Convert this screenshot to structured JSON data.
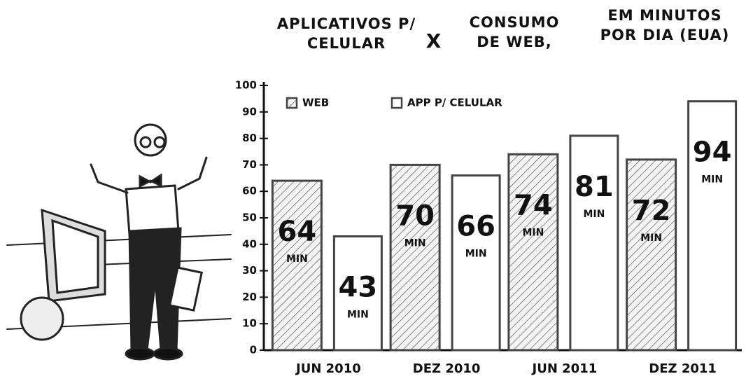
{
  "chart_data": {
    "type": "bar",
    "title": [
      "APLICATIVOS P/ CELULAR",
      "X",
      "CONSUMO DE WEB,",
      "EM MINUTOS POR DIA (EUA)"
    ],
    "categories": [
      "JUN 2010",
      "DEZ 2010",
      "JUN 2011",
      "DEZ 2011"
    ],
    "series": [
      {
        "name": "WEB",
        "color": "#444444",
        "hatch": true,
        "values": [
          64,
          70,
          74,
          72
        ]
      },
      {
        "name": "APP P/ CELULAR",
        "color": "#444444",
        "hatch": false,
        "values": [
          43,
          66,
          81,
          94
        ]
      }
    ],
    "value_unit": "MIN",
    "ylim": [
      0,
      100
    ],
    "yticks": [
      0,
      10,
      20,
      30,
      40,
      50,
      60,
      70,
      80,
      90,
      100
    ],
    "legend": "upper left"
  }
}
